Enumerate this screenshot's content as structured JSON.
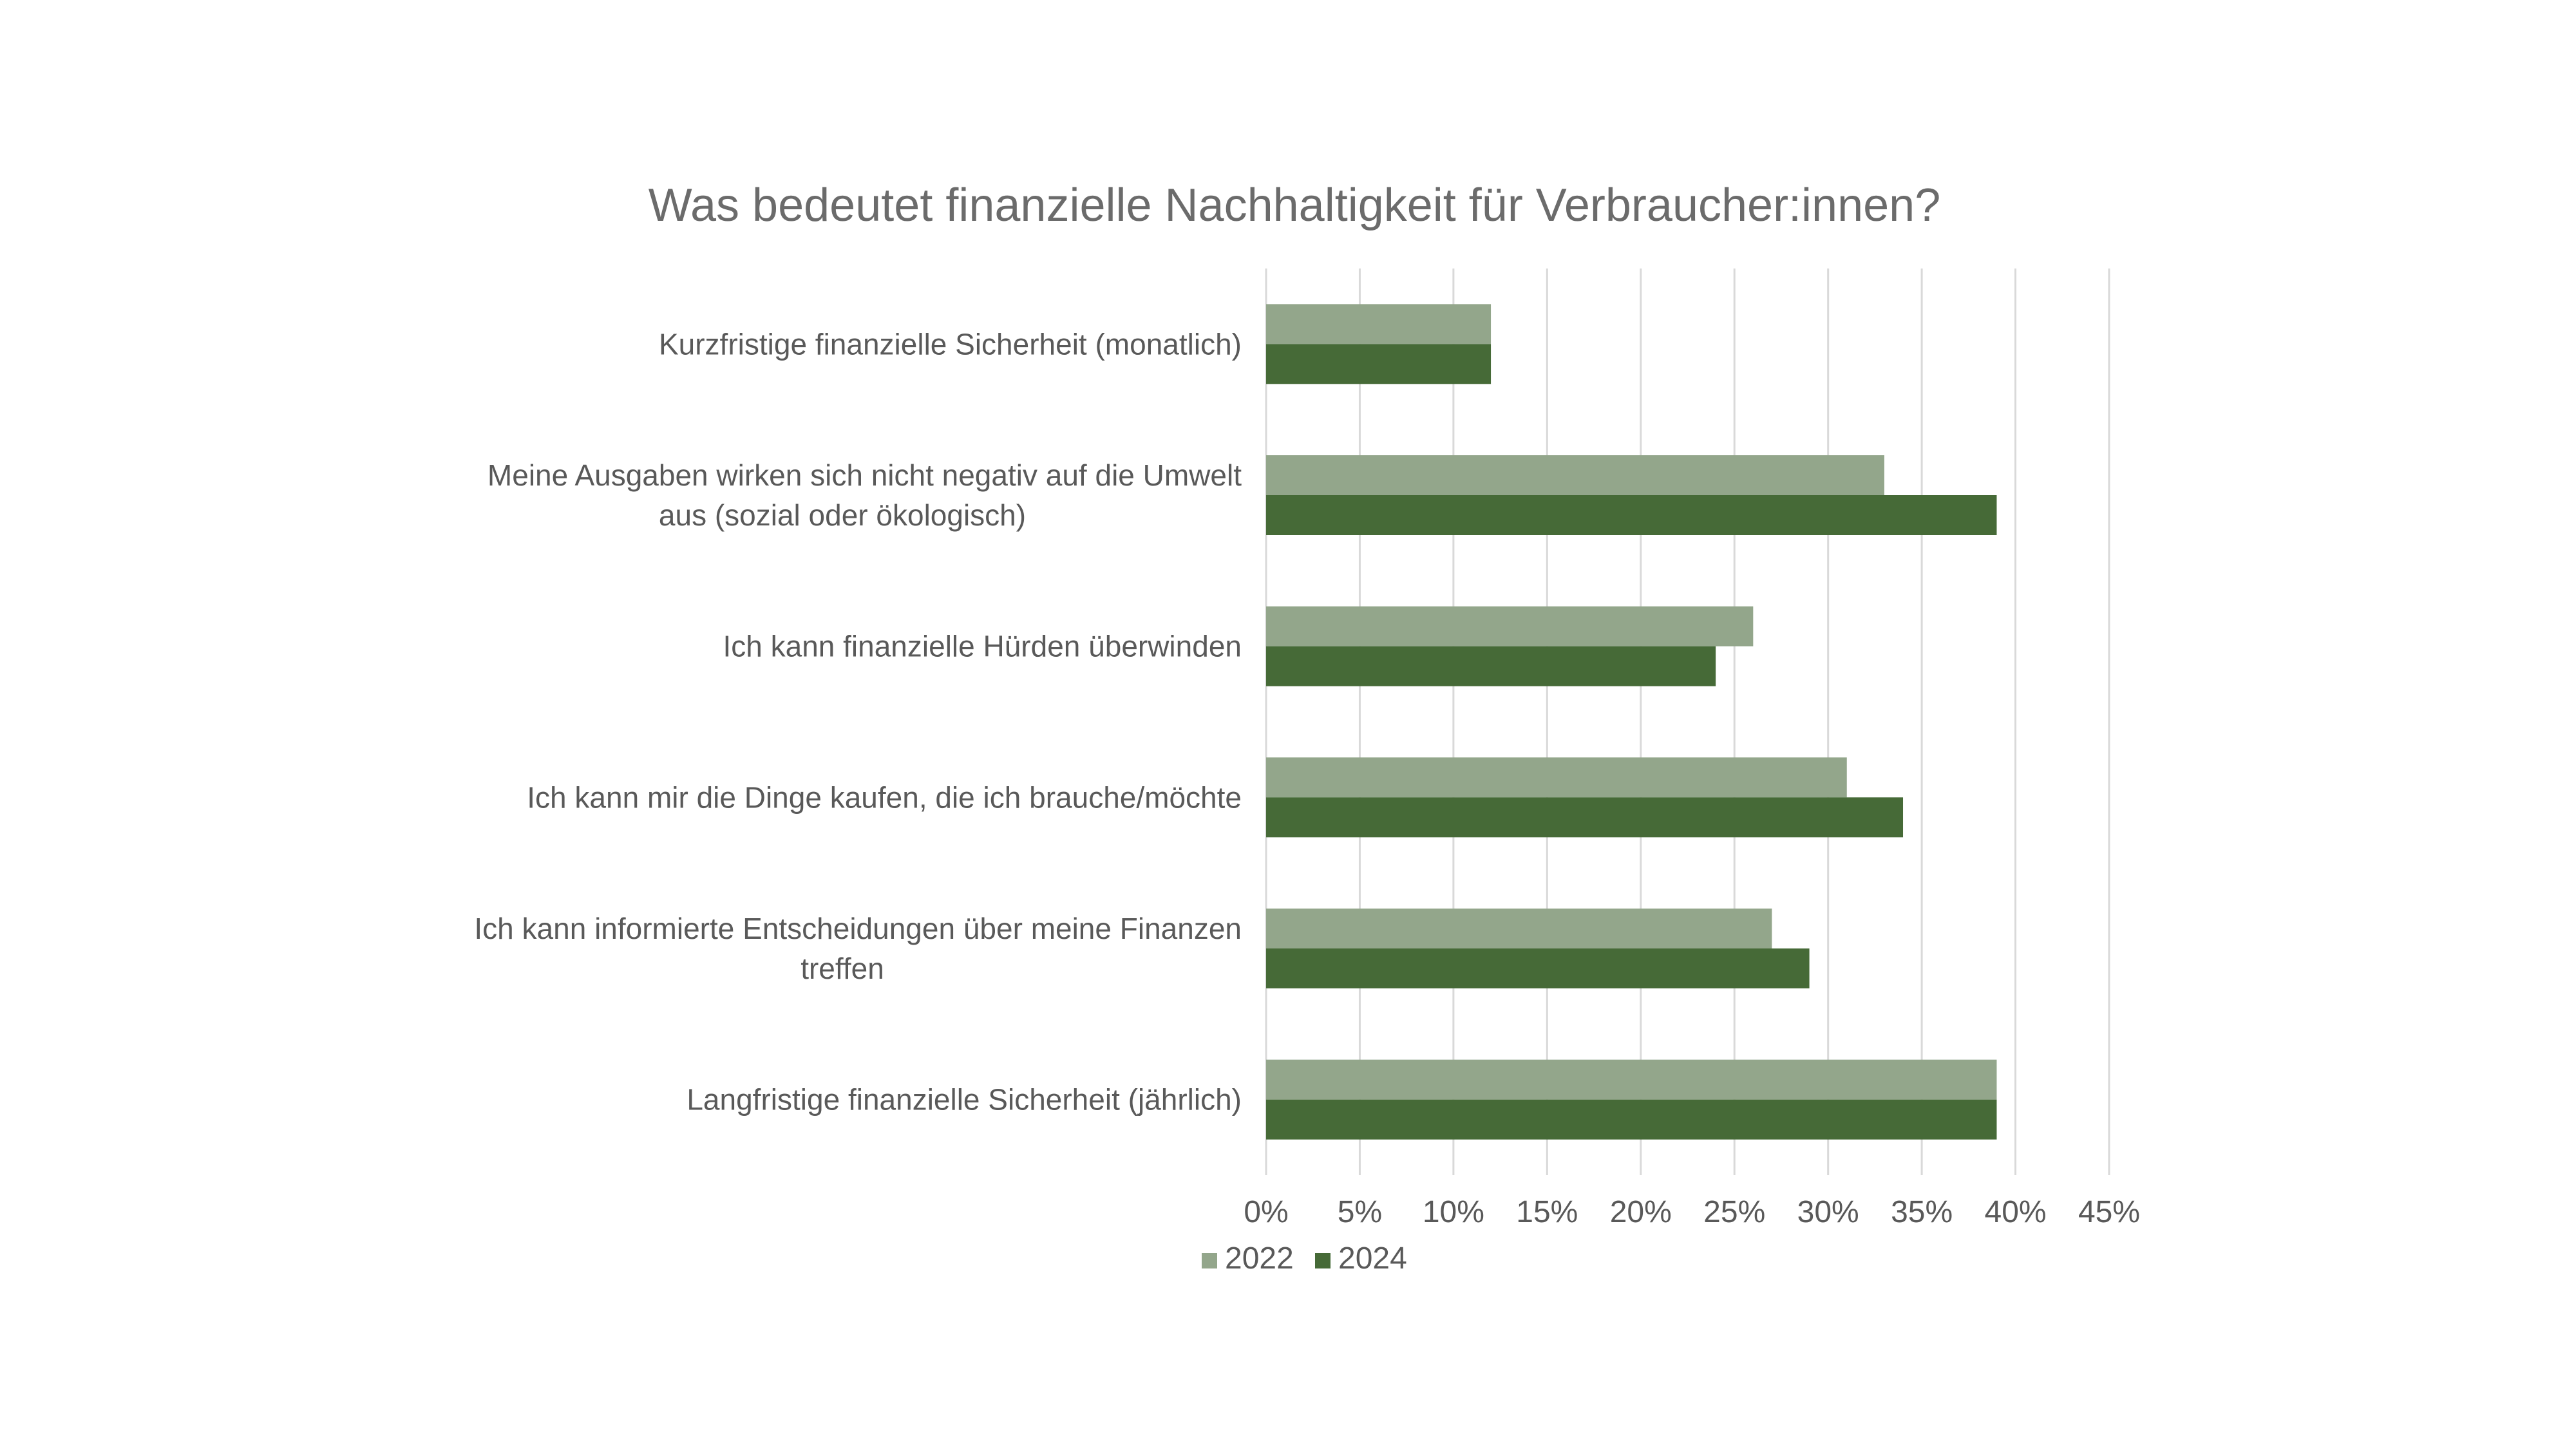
{
  "chart_data": {
    "type": "bar",
    "orientation": "horizontal",
    "title": "Was bedeutet finanzielle Nachhaltigkeit für Verbraucher:innen?",
    "xlabel": "",
    "ylabel": "",
    "categories": [
      [
        "Kurzfristige finanzielle Sicherheit (monatlich)"
      ],
      [
        "Meine Ausgaben wirken sich nicht negativ auf die Umwelt",
        "aus (sozial oder ökologisch)"
      ],
      [
        "Ich kann finanzielle Hürden überwinden"
      ],
      [
        "Ich kann mir die Dinge kaufen, die ich brauche/möchte"
      ],
      [
        "Ich kann informierte Entscheidungen über meine Finanzen",
        "treffen"
      ],
      [
        "Langfristige finanzielle Sicherheit (jährlich)"
      ]
    ],
    "series": [
      {
        "name": "2022",
        "color": "#93a68b",
        "values": [
          12,
          33,
          26,
          31,
          27,
          39
        ]
      },
      {
        "name": "2024",
        "color": "#466a37",
        "values": [
          12,
          39,
          24,
          34,
          29,
          39
        ]
      }
    ],
    "xlim": [
      0,
      45
    ],
    "xticks": [
      0,
      5,
      10,
      15,
      20,
      25,
      30,
      35,
      40,
      45
    ],
    "tick_suffix": "%",
    "grid": true,
    "legend_position": "bottom"
  }
}
